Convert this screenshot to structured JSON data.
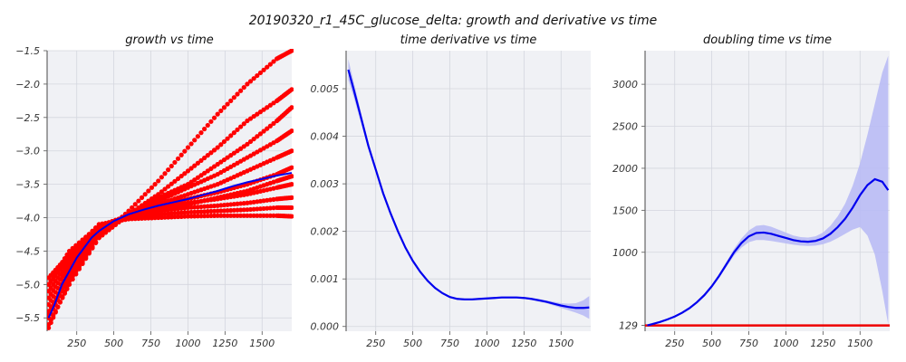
{
  "figure": {
    "title": "20190320_r1_45C_glucose_delta: growth and derivative vs time"
  },
  "colors": {
    "background": "#f0f1f5",
    "grid": "#d4d6de",
    "scatter": "#ff0000",
    "fit_line": "#0000ee",
    "band": "#b9bbf5",
    "baseline": "#ee0000"
  },
  "chart_data": [
    {
      "type": "scatter",
      "title": "growth vs time",
      "xlabel": "",
      "ylabel": "",
      "xlim": [
        50,
        1700
      ],
      "ylim": [
        -5.7,
        -1.5
      ],
      "xticks": [
        250,
        500,
        750,
        1000,
        1250,
        1500
      ],
      "yticks": [
        -5.5,
        -5.0,
        -4.5,
        -4.0,
        -3.5,
        -3.0,
        -2.5,
        -2.0,
        -1.5
      ],
      "ytick_labels": [
        "−5.5",
        "−5.0",
        "−4.5",
        "−4.0",
        "−3.5",
        "−3.0",
        "−2.5",
        "−2.0",
        "−1.5"
      ],
      "grid": true,
      "scatter_groups": [
        {
          "x": [
            60,
            200,
            400,
            600,
            800,
            1000,
            1200,
            1400,
            1600,
            1700
          ],
          "y": [
            -5.65,
            -4.95,
            -4.3,
            -3.9,
            -3.45,
            -2.95,
            -2.45,
            -2.0,
            -1.62,
            -1.5
          ]
        },
        {
          "x": [
            60,
            200,
            400,
            600,
            800,
            1000,
            1200,
            1400,
            1600,
            1700
          ],
          "y": [
            -5.6,
            -5.0,
            -4.3,
            -3.95,
            -3.65,
            -3.3,
            -2.95,
            -2.55,
            -2.25,
            -2.08
          ]
        },
        {
          "x": [
            60,
            200,
            400,
            600,
            800,
            1000,
            1200,
            1400,
            1600,
            1700
          ],
          "y": [
            -5.5,
            -4.9,
            -4.3,
            -3.95,
            -3.7,
            -3.5,
            -3.2,
            -2.9,
            -2.55,
            -2.35
          ]
        },
        {
          "x": [
            60,
            200,
            400,
            600,
            800,
            1000,
            1200,
            1400,
            1600,
            1700
          ],
          "y": [
            -5.45,
            -4.85,
            -4.25,
            -3.95,
            -3.75,
            -3.55,
            -3.35,
            -3.1,
            -2.85,
            -2.7
          ]
        },
        {
          "x": [
            60,
            200,
            400,
            600,
            800,
            1000,
            1200,
            1400,
            1600,
            1700
          ],
          "y": [
            -5.4,
            -4.8,
            -4.25,
            -3.95,
            -3.8,
            -3.65,
            -3.5,
            -3.3,
            -3.1,
            -3.0
          ]
        },
        {
          "x": [
            60,
            200,
            400,
            600,
            800,
            1000,
            1200,
            1400,
            1600,
            1700
          ],
          "y": [
            -5.3,
            -4.75,
            -4.2,
            -3.95,
            -3.82,
            -3.72,
            -3.62,
            -3.5,
            -3.35,
            -3.25
          ]
        },
        {
          "x": [
            60,
            200,
            400,
            600,
            800,
            1000,
            1200,
            1400,
            1600,
            1700
          ],
          "y": [
            -5.2,
            -4.7,
            -4.2,
            -3.95,
            -3.85,
            -3.78,
            -3.72,
            -3.65,
            -3.55,
            -3.5
          ]
        },
        {
          "x": [
            60,
            200,
            400,
            600,
            800,
            1000,
            1200,
            1400,
            1600,
            1700
          ],
          "y": [
            -5.1,
            -4.65,
            -4.15,
            -3.98,
            -3.9,
            -3.85,
            -3.82,
            -3.78,
            -3.72,
            -3.7
          ]
        },
        {
          "x": [
            60,
            200,
            400,
            600,
            800,
            1000,
            1200,
            1400,
            1600,
            1700
          ],
          "y": [
            -5.0,
            -4.6,
            -4.15,
            -4.0,
            -3.95,
            -3.92,
            -3.9,
            -3.88,
            -3.85,
            -3.85
          ]
        },
        {
          "x": [
            60,
            200,
            400,
            600,
            800,
            1000,
            1200,
            1400,
            1600,
            1700
          ],
          "y": [
            -4.9,
            -4.55,
            -4.1,
            -4.02,
            -4.0,
            -3.98,
            -3.97,
            -3.97,
            -3.97,
            -3.98
          ]
        },
        {
          "x": [
            60,
            200,
            400,
            600,
            800,
            1000,
            1200,
            1400,
            1600,
            1700
          ],
          "y": [
            -5.0,
            -4.5,
            -4.12,
            -3.97,
            -3.88,
            -3.8,
            -3.7,
            -3.6,
            -3.45,
            -3.38
          ]
        }
      ],
      "fit": {
        "x": [
          60,
          100,
          150,
          200,
          250,
          300,
          350,
          400,
          500,
          600,
          700,
          800,
          900,
          1000,
          1100,
          1200,
          1300,
          1400,
          1500,
          1600,
          1700
        ],
        "y": [
          -5.5,
          -5.3,
          -5.0,
          -4.8,
          -4.6,
          -4.45,
          -4.3,
          -4.2,
          -4.05,
          -3.95,
          -3.88,
          -3.82,
          -3.77,
          -3.72,
          -3.66,
          -3.6,
          -3.53,
          -3.47,
          -3.42,
          -3.37,
          -3.33
        ]
      }
    },
    {
      "type": "line",
      "title": "time derivative vs time",
      "xlabel": "",
      "ylabel": "",
      "xlim": [
        50,
        1700
      ],
      "ylim": [
        -0.0001,
        0.0058
      ],
      "xticks": [
        250,
        500,
        750,
        1000,
        1250,
        1500
      ],
      "yticks": [
        0.0,
        0.001,
        0.002,
        0.003,
        0.004,
        0.005
      ],
      "ytick_labels": [
        "0.000",
        "0.001",
        "0.002",
        "0.003",
        "0.004",
        "0.005"
      ],
      "grid": true,
      "x": [
        65,
        100,
        150,
        200,
        250,
        300,
        350,
        400,
        450,
        500,
        550,
        600,
        650,
        700,
        750,
        800,
        850,
        900,
        950,
        1000,
        1050,
        1100,
        1150,
        1200,
        1250,
        1300,
        1350,
        1400,
        1450,
        1500,
        1550,
        1600,
        1650,
        1690
      ],
      "y": [
        0.0054,
        0.005,
        0.0044,
        0.0038,
        0.0033,
        0.0028,
        0.00238,
        0.002,
        0.00166,
        0.00138,
        0.00115,
        0.00096,
        0.00081,
        0.0007,
        0.00062,
        0.00058,
        0.00057,
        0.00057,
        0.00058,
        0.00059,
        0.0006,
        0.00061,
        0.00061,
        0.00061,
        0.0006,
        0.00058,
        0.00055,
        0.00052,
        0.00048,
        0.00044,
        0.00041,
        0.00039,
        0.00039,
        0.0004
      ],
      "band_halfwidth": [
        0.00022,
        0.00016,
        0.00011,
        8e-05,
        6e-05,
        5e-05,
        4e-05,
        3e-05,
        3e-05,
        3e-05,
        3e-05,
        3e-05,
        2e-05,
        2e-05,
        2e-05,
        2e-05,
        2e-05,
        2e-05,
        2e-05,
        2e-05,
        2e-05,
        2e-05,
        2e-05,
        2e-05,
        2e-05,
        2e-05,
        3e-05,
        3e-05,
        4e-05,
        5e-05,
        7e-05,
        0.0001,
        0.00016,
        0.00024
      ]
    },
    {
      "type": "line",
      "title": "doubling time vs time",
      "xlabel": "",
      "ylabel": "",
      "xlim": [
        50,
        1700
      ],
      "ylim": [
        60,
        3400
      ],
      "xticks": [
        250,
        500,
        750,
        1000,
        1250,
        1500
      ],
      "yticks": [
        129,
        1000,
        1500,
        2000,
        2500,
        3000
      ],
      "ytick_labels": [
        "129",
        "1000",
        "1500",
        "2000",
        "2500",
        "3000"
      ],
      "grid": true,
      "baseline_value": 129,
      "x": [
        65,
        100,
        150,
        200,
        250,
        300,
        350,
        400,
        450,
        500,
        550,
        600,
        650,
        700,
        750,
        800,
        850,
        900,
        950,
        1000,
        1050,
        1100,
        1150,
        1200,
        1250,
        1300,
        1350,
        1400,
        1450,
        1500,
        1550,
        1600,
        1650,
        1690
      ],
      "y": [
        129,
        145,
        170,
        200,
        235,
        280,
        335,
        405,
        490,
        595,
        720,
        860,
        1000,
        1110,
        1190,
        1230,
        1235,
        1220,
        1195,
        1170,
        1145,
        1130,
        1125,
        1135,
        1165,
        1220,
        1300,
        1400,
        1530,
        1680,
        1800,
        1870,
        1840,
        1740
      ],
      "band_halfwidth": [
        5,
        5,
        6,
        8,
        10,
        12,
        14,
        16,
        18,
        20,
        24,
        30,
        40,
        55,
        70,
        85,
        90,
        85,
        75,
        65,
        55,
        50,
        50,
        55,
        70,
        95,
        130,
        180,
        260,
        380,
        600,
        900,
        1300,
        1600
      ]
    }
  ]
}
